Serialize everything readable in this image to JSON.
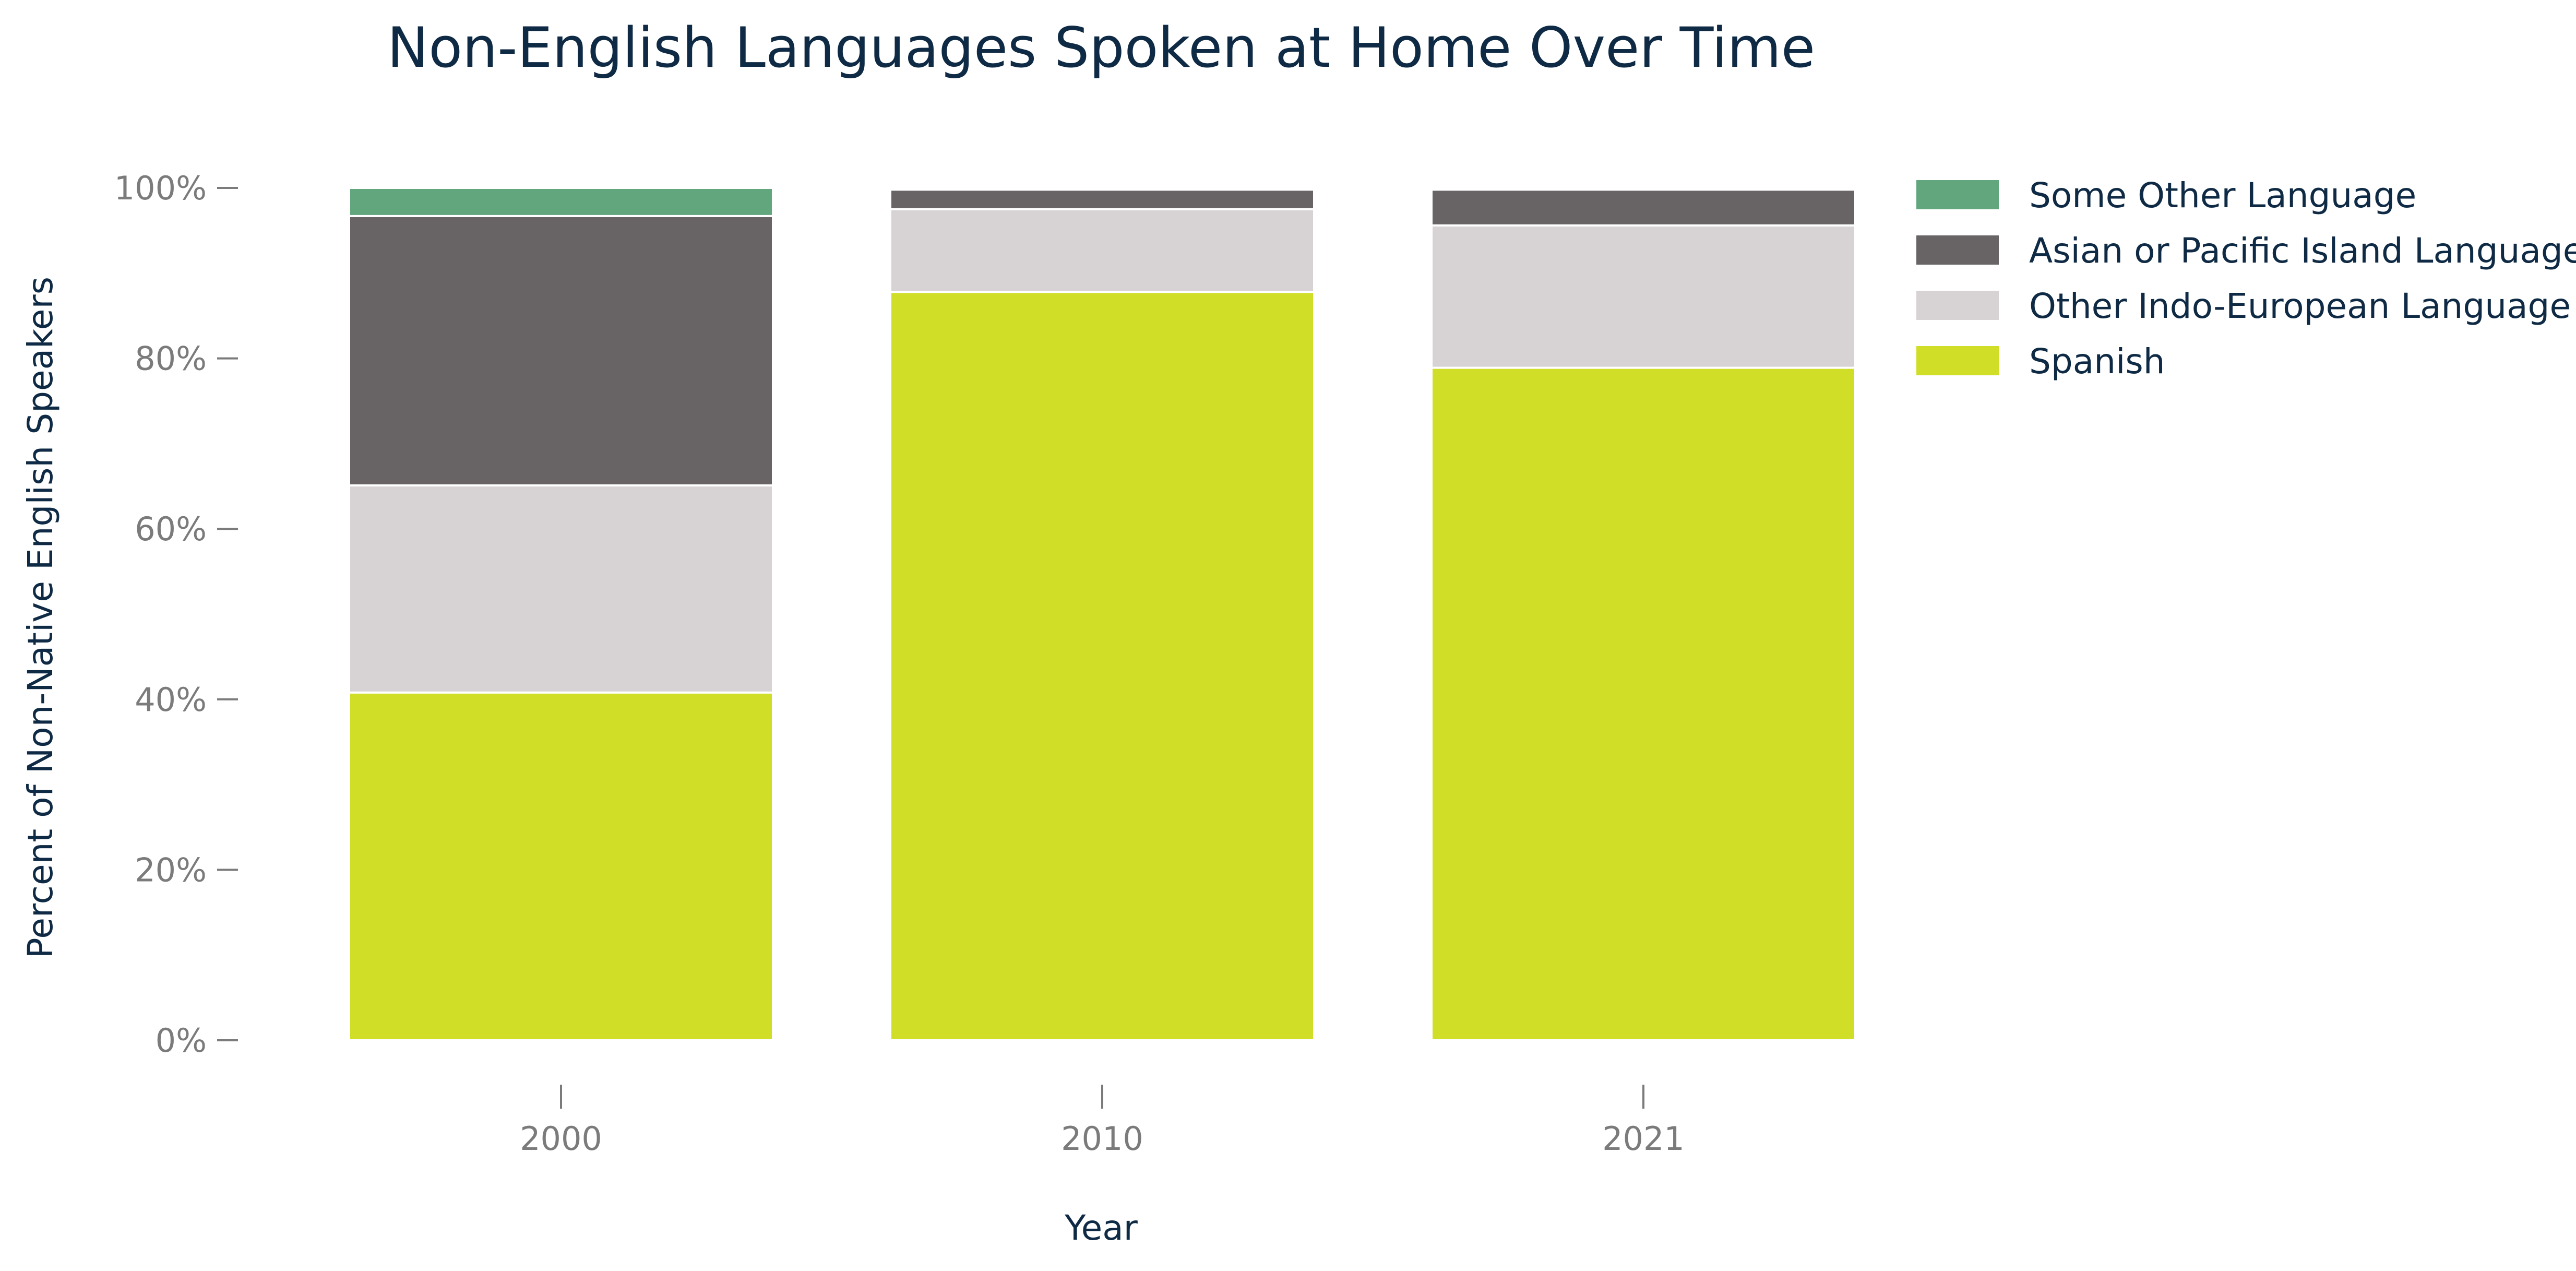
{
  "chart_data": {
    "type": "bar",
    "stacked": true,
    "title": "Non-English Languages Spoken at Home Over Time",
    "xlabel": "Year",
    "ylabel": "Percent of Non-Native English Speakers",
    "categories": [
      "2000",
      "2010",
      "2021"
    ],
    "y_ticks": [
      "0%",
      "20%",
      "40%",
      "60%",
      "80%",
      "100%"
    ],
    "ylim": [
      0,
      100
    ],
    "grid": false,
    "legend_position": "top-right",
    "series": [
      {
        "name": "Spanish",
        "color": "#d0de27",
        "values": [
          40.8,
          87.8,
          78.9
        ]
      },
      {
        "name": "Other Indo-European Language",
        "color": "#d7d2d4",
        "values": [
          24.3,
          9.7,
          16.7
        ]
      },
      {
        "name": "Asian or Pacific Island Language",
        "color": "#686465",
        "values": [
          31.6,
          2.3,
          4.2
        ]
      },
      {
        "name": "Some Other Language",
        "color": "#62a67e",
        "values": [
          3.3,
          0.2,
          0.2
        ]
      }
    ]
  }
}
